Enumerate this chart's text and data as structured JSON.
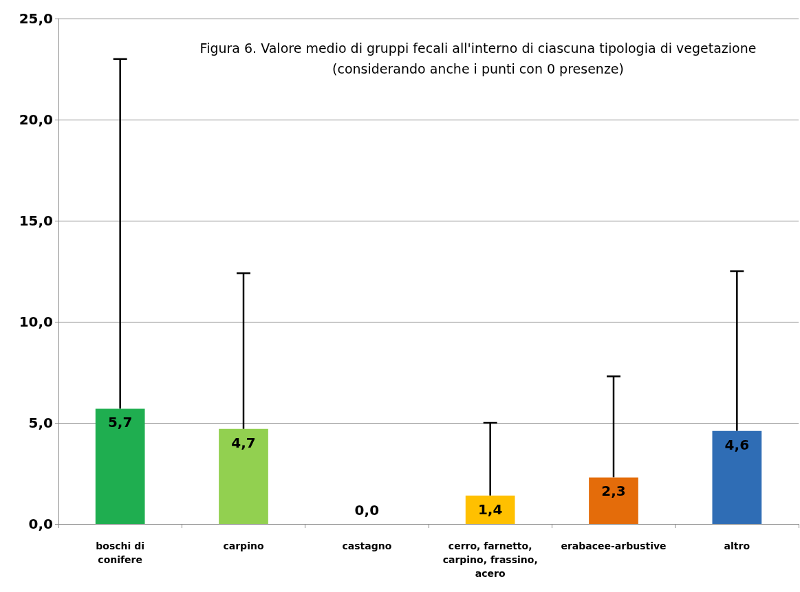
{
  "chart_data": {
    "type": "bar",
    "title": "Figura 6. Valore medio di gruppi fecali all'interno di ciascuna tipologia di vegetazione\n(considerando anche i punti con 0 presenze)",
    "categories": [
      "boschi di\nconifere",
      "carpino",
      "castagno",
      "cerro, farnetto,\ncarpino, frassino,\nacero",
      "erabacee-arbustive",
      "altro"
    ],
    "values": [
      5.7,
      4.7,
      0.0,
      1.4,
      2.3,
      4.6
    ],
    "colors": [
      "#1fae50",
      "#92d050",
      "#ffc000",
      "#ffc000",
      "#e46c0a",
      "#2f6db5"
    ],
    "value_labels": [
      "5,7",
      "4,7",
      "0,0",
      "1,4",
      "2,3",
      "4,6"
    ],
    "errors": [
      [
        5.7,
        23.0
      ],
      [
        4.7,
        12.4
      ],
      null,
      [
        1.4,
        5.0
      ],
      [
        2.3,
        7.3
      ],
      [
        4.6,
        12.5
      ]
    ],
    "ylim": [
      0,
      25
    ],
    "yticks": [
      {
        "value": 0,
        "label": "0,0"
      },
      {
        "value": 5,
        "label": "5,0"
      },
      {
        "value": 10,
        "label": "10,0"
      },
      {
        "value": 15,
        "label": "15,0"
      },
      {
        "value": 20,
        "label": "20,0"
      },
      {
        "value": 25,
        "label": "25,0"
      }
    ],
    "grid": "y"
  }
}
